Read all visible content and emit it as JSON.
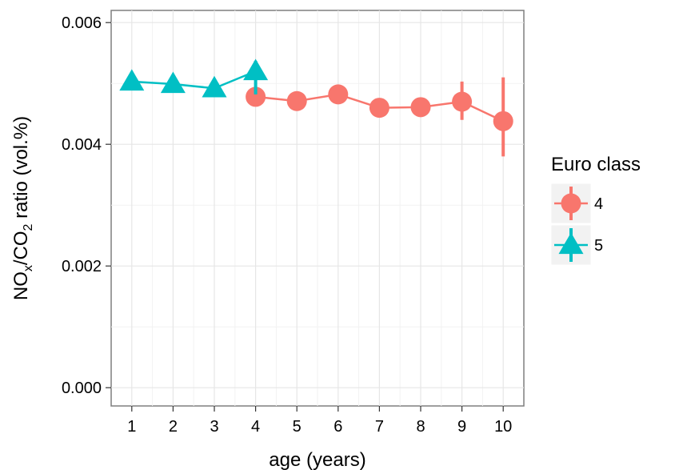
{
  "chart_data": {
    "type": "line",
    "xlabel": "age (years)",
    "ylabel_parts": {
      "p1": "NO",
      "sub1": "x",
      "p2": "/CO",
      "sub2": "2",
      "p3": " ratio (vol.%)"
    },
    "x_ticks": [
      1,
      2,
      3,
      4,
      5,
      6,
      7,
      8,
      9,
      10
    ],
    "y_ticks": [
      {
        "value": 0.0,
        "label": "0.000"
      },
      {
        "value": 0.002,
        "label": "0.002"
      },
      {
        "value": 0.004,
        "label": "0.004"
      },
      {
        "value": 0.006,
        "label": "0.006"
      }
    ],
    "xlim": [
      0.5,
      10.5
    ],
    "ylim": [
      -0.0003,
      0.0062
    ],
    "grid": true,
    "legend_title": "Euro class",
    "legend_position": "right",
    "series": [
      {
        "name": "4",
        "color": "#F8766D",
        "marker": "circle",
        "points": [
          {
            "x": 4,
            "y": 0.00478,
            "lo": 0.00468,
            "hi": 0.00488
          },
          {
            "x": 5,
            "y": 0.00471,
            "lo": 0.00466,
            "hi": 0.00476
          },
          {
            "x": 6,
            "y": 0.00482,
            "lo": 0.00476,
            "hi": 0.00488
          },
          {
            "x": 7,
            "y": 0.0046,
            "lo": 0.00455,
            "hi": 0.00465
          },
          {
            "x": 8,
            "y": 0.00461,
            "lo": 0.00456,
            "hi": 0.00466
          },
          {
            "x": 9,
            "y": 0.0047,
            "lo": 0.0044,
            "hi": 0.00503
          },
          {
            "x": 10,
            "y": 0.00438,
            "lo": 0.0038,
            "hi": 0.0051
          }
        ]
      },
      {
        "name": "5",
        "color": "#00BFC4",
        "marker": "triangle",
        "points": [
          {
            "x": 1,
            "y": 0.00503,
            "lo": 0.005,
            "hi": 0.00506
          },
          {
            "x": 2,
            "y": 0.00499,
            "lo": 0.00496,
            "hi": 0.00502
          },
          {
            "x": 3,
            "y": 0.00492,
            "lo": 0.00489,
            "hi": 0.00495
          },
          {
            "x": 4,
            "y": 0.0052,
            "lo": 0.00482,
            "hi": 0.00537
          }
        ]
      }
    ]
  }
}
